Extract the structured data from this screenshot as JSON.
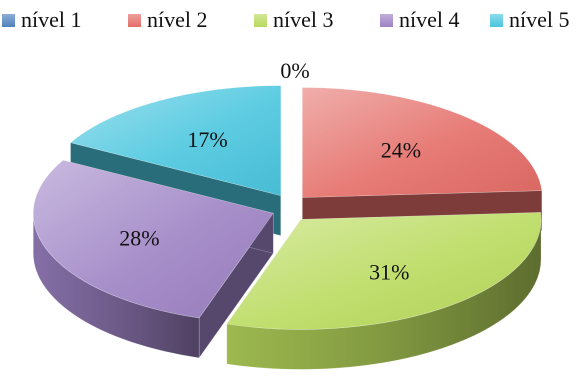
{
  "chart_data": {
    "type": "pie",
    "title": "",
    "categories": [
      "nível 1",
      "nível 2",
      "nível 3",
      "nível 4",
      "nível 5"
    ],
    "values": [
      0,
      24,
      31,
      28,
      17
    ],
    "labels": [
      "0%",
      "24%",
      "31%",
      "28%",
      "17%"
    ],
    "colors": [
      "#4f81bd",
      "#e46c67",
      "#b9da5d",
      "#9d82c4",
      "#4bc6df"
    ],
    "exploded": true,
    "three_d": true,
    "legend_position": "top"
  }
}
